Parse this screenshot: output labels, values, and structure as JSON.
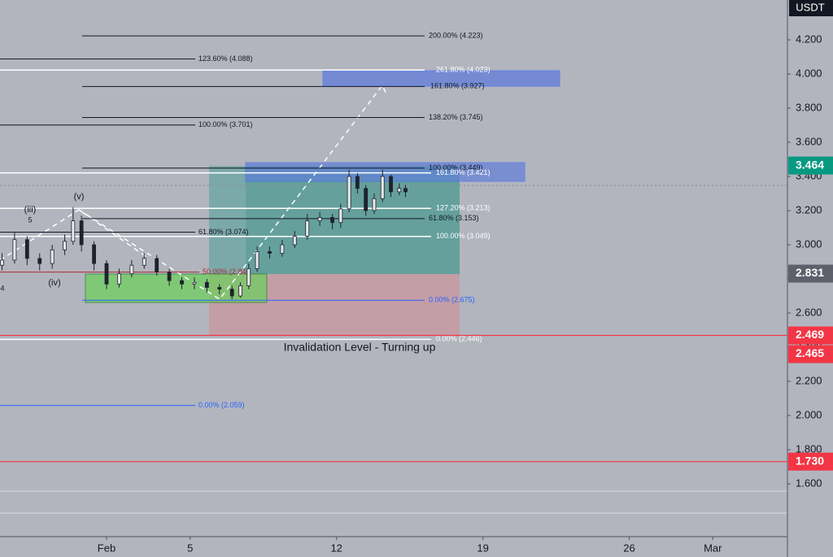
{
  "chart_data": {
    "type": "candlestick",
    "currency": "USDT",
    "x": [
      -4,
      -3.4,
      -2.8,
      -2.2,
      -1.6,
      -1,
      -0.6,
      -0.2,
      0.4,
      1,
      1.6,
      2.2,
      2.8,
      3.4,
      4,
      4.6,
      5.2,
      5.8,
      6.4,
      7,
      7.4,
      7.8,
      8.2,
      8.8,
      9.4,
      10,
      10.6,
      11.2,
      11.8,
      12.2,
      12.6,
      13,
      13.4,
      13.8,
      14.2,
      14.6,
      15,
      15.3
    ],
    "open": [
      2.88,
      2.91,
      3.03,
      2.92,
      2.89,
      2.97,
      3.02,
      3.14,
      3.0,
      2.89,
      2.77,
      2.83,
      2.88,
      2.92,
      2.84,
      2.79,
      2.77,
      2.78,
      2.75,
      2.74,
      2.7,
      2.76,
      2.86,
      2.96,
      2.95,
      3.0,
      3.05,
      3.14,
      3.16,
      3.13,
      3.21,
      3.4,
      3.33,
      3.2,
      3.27,
      3.4,
      3.31,
      3.33
    ],
    "high": [
      2.95,
      3.07,
      3.05,
      2.95,
      3.0,
      3.06,
      3.22,
      3.17,
      3.02,
      2.91,
      2.86,
      2.91,
      2.95,
      2.94,
      2.86,
      2.81,
      2.81,
      2.8,
      2.77,
      2.76,
      2.78,
      2.89,
      2.99,
      2.99,
      3.03,
      3.08,
      3.18,
      3.19,
      3.18,
      3.24,
      3.44,
      3.42,
      3.35,
      3.3,
      3.44,
      3.41,
      3.36,
      3.35
    ],
    "low": [
      2.85,
      2.89,
      2.88,
      2.85,
      2.86,
      2.94,
      3.0,
      2.96,
      2.85,
      2.74,
      2.75,
      2.81,
      2.86,
      2.82,
      2.76,
      2.74,
      2.74,
      2.72,
      2.71,
      2.68,
      2.69,
      2.74,
      2.84,
      2.92,
      2.93,
      2.98,
      3.03,
      3.11,
      3.09,
      3.1,
      3.19,
      3.3,
      3.17,
      3.18,
      3.25,
      3.28,
      3.29,
      3.28
    ],
    "close": [
      2.91,
      3.03,
      2.92,
      2.89,
      2.97,
      3.02,
      3.14,
      3.0,
      2.89,
      2.77,
      2.83,
      2.88,
      2.92,
      2.84,
      2.79,
      2.77,
      2.78,
      2.75,
      2.74,
      2.7,
      2.76,
      2.86,
      2.96,
      2.95,
      3.0,
      3.05,
      3.14,
      3.16,
      3.13,
      3.21,
      3.4,
      3.33,
      3.2,
      3.27,
      3.4,
      3.31,
      3.33,
      3.31
    ],
    "candle_color": "#1e222d",
    "xlim": [
      -4.097,
      33.568
    ],
    "xticks": [
      {
        "value": 1,
        "label": "Feb"
      },
      5,
      12,
      19,
      26,
      {
        "value": 30,
        "label": "Mar"
      }
    ],
    "ylim": [
      1.2905,
      4.4333
    ],
    "yticks": [
      {
        "value": 1.6,
        "label": "1.600"
      },
      {
        "value": 1.8,
        "label": "1.800"
      },
      {
        "value": 2.0,
        "label": "2.000"
      },
      {
        "value": 2.2,
        "label": "2.200"
      },
      {
        "value": 2.4,
        "label": "2.400"
      },
      {
        "value": 2.6,
        "label": "2.600"
      },
      {
        "value": 2.8,
        "label": "2.800"
      },
      {
        "value": 3.0,
        "label": "3.000"
      },
      {
        "value": 3.2,
        "label": "3.200"
      },
      {
        "value": 3.4,
        "label": "3.400"
      },
      {
        "value": 3.6,
        "label": "3.600"
      },
      {
        "value": 3.8,
        "label": "3.800"
      },
      {
        "value": 4.0,
        "label": "4.000"
      },
      {
        "value": 4.2,
        "label": "4.200"
      }
    ],
    "fib_levels": [
      {
        "value": 4.223,
        "label": "200.00% (4.223)",
        "color": "#131722"
      },
      {
        "value": 4.088,
        "label": "123.60% (4.088)",
        "color": "#131722"
      },
      {
        "value": 4.023,
        "label": "261.80% (4.023)",
        "color": "#ffffff"
      },
      {
        "value": 3.927,
        "label": "161.80% (3.927)",
        "color": "#131722"
      },
      {
        "value": 3.745,
        "label": "138.20% (3.745)",
        "color": "#131722"
      },
      {
        "value": 3.701,
        "label": "100.00% (3.701)",
        "color": "#131722"
      },
      {
        "value": 3.449,
        "label": "100.00% (3.449)",
        "color": "#131722"
      },
      {
        "value": 3.421,
        "label": "161.80% (3.421)",
        "color": "#ffffff"
      },
      {
        "value": 3.213,
        "label": "127.20% (3.213)",
        "color": "#ffffff"
      },
      {
        "value": 3.153,
        "label": "61.80% (3.153)",
        "color": "#131722"
      },
      {
        "value": 3.074,
        "label": "61.80% (3.074)",
        "color": "#131722"
      },
      {
        "value": 3.049,
        "label": "100.00% (3.049)",
        "color": "#ffffff"
      },
      {
        "value": 2.84,
        "label": "50.00% (2.84",
        "color": "#b22833"
      },
      {
        "value": 2.675,
        "label": "0.00% (2.675)",
        "color": "#2962ff"
      },
      {
        "value": 2.446,
        "label": "0.00% (2.446)",
        "color": "#ffffff"
      },
      {
        "value": 2.059,
        "label": "0.00% (2.059)",
        "color": "#2962ff"
      }
    ],
    "price_labels": [
      {
        "value": 3.464,
        "label": "3.464",
        "color": "#089981"
      },
      {
        "value": 2.831,
        "label": "2.831",
        "color": "#5d606b"
      },
      {
        "value": 2.469,
        "label": "2.469",
        "color": "#f23645"
      },
      {
        "value": 2.465,
        "label": "2.465",
        "color": "#f23645"
      },
      {
        "value": 1.73,
        "label": "1.730",
        "color": "#f23645"
      }
    ],
    "annotations": [
      "Invalidation Level - Turning up",
      "(iii)",
      "5",
      "(v)",
      "(iv)",
      "4"
    ]
  }
}
